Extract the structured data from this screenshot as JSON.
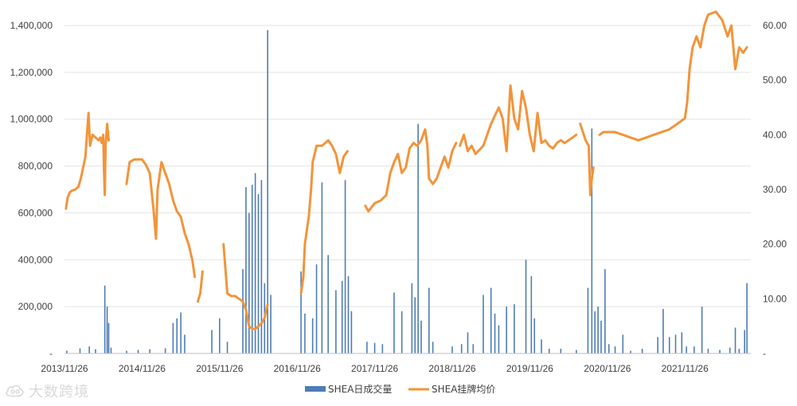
{
  "chart_data": {
    "type": "bar+line",
    "title": "",
    "x_tick_labels": [
      "2013/11/26",
      "2014/11/26",
      "2015/11/26",
      "2016/11/26",
      "2017/11/26",
      "2018/11/26",
      "2019/11/26",
      "2020/11/26",
      "2021/11/26"
    ],
    "y_left_ticks": [
      "-",
      "200,000",
      "400,000",
      "600,000",
      "800,000",
      "1,000,000",
      "1,200,000",
      "1,400,000"
    ],
    "y_right_ticks": [
      "-",
      "10.00",
      "20.00",
      "30.00",
      "40.00",
      "50.00",
      "60.00"
    ],
    "y_left_range": [
      0,
      1400000
    ],
    "y_right_range": [
      0,
      60
    ],
    "x_range": [
      2013.9,
      2022.75
    ],
    "series": [
      {
        "name": "SHEA日成交量",
        "type": "bar",
        "axis": "left",
        "color": "#4e7db5",
        "points": [
          [
            2013.93,
            12000
          ],
          [
            2014.1,
            22000
          ],
          [
            2014.22,
            30000
          ],
          [
            2014.3,
            18000
          ],
          [
            2014.42,
            290000
          ],
          [
            2014.45,
            200000
          ],
          [
            2014.47,
            130000
          ],
          [
            2014.5,
            25000
          ],
          [
            2014.7,
            12000
          ],
          [
            2014.85,
            15000
          ],
          [
            2015.0,
            18000
          ],
          [
            2015.2,
            22000
          ],
          [
            2015.3,
            130000
          ],
          [
            2015.35,
            150000
          ],
          [
            2015.4,
            175000
          ],
          [
            2015.45,
            80000
          ],
          [
            2015.8,
            100000
          ],
          [
            2015.9,
            150000
          ],
          [
            2016.0,
            50000
          ],
          [
            2016.2,
            360000
          ],
          [
            2016.24,
            710000
          ],
          [
            2016.28,
            600000
          ],
          [
            2016.32,
            720000
          ],
          [
            2016.36,
            770000
          ],
          [
            2016.4,
            680000
          ],
          [
            2016.44,
            740000
          ],
          [
            2016.48,
            300000
          ],
          [
            2016.52,
            1380000
          ],
          [
            2016.56,
            250000
          ],
          [
            2016.95,
            350000
          ],
          [
            2017.0,
            170000
          ],
          [
            2017.1,
            150000
          ],
          [
            2017.15,
            380000
          ],
          [
            2017.22,
            730000
          ],
          [
            2017.3,
            420000
          ],
          [
            2017.4,
            270000
          ],
          [
            2017.48,
            310000
          ],
          [
            2017.52,
            740000
          ],
          [
            2017.56,
            330000
          ],
          [
            2017.6,
            180000
          ],
          [
            2017.8,
            50000
          ],
          [
            2017.9,
            45000
          ],
          [
            2018.0,
            40000
          ],
          [
            2018.15,
            260000
          ],
          [
            2018.25,
            180000
          ],
          [
            2018.38,
            300000
          ],
          [
            2018.42,
            240000
          ],
          [
            2018.46,
            980000
          ],
          [
            2018.5,
            140000
          ],
          [
            2018.6,
            280000
          ],
          [
            2018.65,
            50000
          ],
          [
            2018.9,
            30000
          ],
          [
            2019.02,
            40000
          ],
          [
            2019.1,
            90000
          ],
          [
            2019.17,
            40000
          ],
          [
            2019.3,
            250000
          ],
          [
            2019.4,
            280000
          ],
          [
            2019.45,
            170000
          ],
          [
            2019.5,
            120000
          ],
          [
            2019.6,
            200000
          ],
          [
            2019.7,
            210000
          ],
          [
            2019.85,
            400000
          ],
          [
            2019.92,
            330000
          ],
          [
            2019.96,
            150000
          ],
          [
            2020.05,
            60000
          ],
          [
            2020.15,
            20000
          ],
          [
            2020.3,
            20000
          ],
          [
            2020.5,
            15000
          ],
          [
            2020.65,
            280000
          ],
          [
            2020.7,
            960000
          ],
          [
            2020.74,
            180000
          ],
          [
            2020.78,
            200000
          ],
          [
            2020.82,
            140000
          ],
          [
            2020.87,
            360000
          ],
          [
            2020.92,
            40000
          ],
          [
            2021.0,
            30000
          ],
          [
            2021.1,
            80000
          ],
          [
            2021.2,
            12000
          ],
          [
            2021.35,
            20000
          ],
          [
            2021.55,
            70000
          ],
          [
            2021.62,
            190000
          ],
          [
            2021.7,
            70000
          ],
          [
            2021.78,
            80000
          ],
          [
            2021.86,
            90000
          ],
          [
            2021.92,
            30000
          ],
          [
            2022.02,
            30000
          ],
          [
            2022.12,
            200000
          ],
          [
            2022.2,
            20000
          ],
          [
            2022.35,
            15000
          ],
          [
            2022.48,
            25000
          ],
          [
            2022.55,
            110000
          ],
          [
            2022.6,
            20000
          ],
          [
            2022.67,
            100000
          ],
          [
            2022.7,
            300000
          ]
        ]
      },
      {
        "name": "SHEA挂牌均价",
        "type": "line",
        "axis": "right",
        "color": "#f2943a",
        "segments": [
          [
            [
              2013.92,
              26.5
            ],
            [
              2013.94,
              28.5
            ],
            [
              2013.97,
              29.5
            ],
            [
              2014.0,
              29.8
            ],
            [
              2014.04,
              30.0
            ],
            [
              2014.08,
              30.5
            ],
            [
              2014.11,
              32.0
            ],
            [
              2014.14,
              34.0
            ],
            [
              2014.17,
              36.0
            ],
            [
              2014.19,
              40.0
            ],
            [
              2014.21,
              44.0
            ],
            [
              2014.23,
              38.0
            ],
            [
              2014.26,
              40.0
            ],
            [
              2014.3,
              39.5
            ],
            [
              2014.34,
              39.0
            ],
            [
              2014.36,
              39.5
            ],
            [
              2014.38,
              38.5
            ],
            [
              2014.4,
              40.0
            ],
            [
              2014.41,
              33.0
            ],
            [
              2014.42,
              29.0
            ],
            [
              2014.43,
              38.0
            ],
            [
              2014.45,
              42.0
            ],
            [
              2014.47,
              39.0
            ]
          ],
          [
            [
              2014.7,
              31.0
            ],
            [
              2014.74,
              35.0
            ],
            [
              2014.8,
              35.5
            ],
            [
              2014.9,
              35.5
            ],
            [
              2014.95,
              34.5
            ],
            [
              2015.0,
              33.0
            ],
            [
              2015.05,
              26.0
            ],
            [
              2015.08,
              21.0
            ],
            [
              2015.1,
              30.0
            ],
            [
              2015.15,
              35.0
            ],
            [
              2015.2,
              33.0
            ],
            [
              2015.25,
              31.0
            ],
            [
              2015.3,
              28.0
            ],
            [
              2015.35,
              26.0
            ],
            [
              2015.4,
              25.0
            ],
            [
              2015.45,
              22.0
            ],
            [
              2015.5,
              20.0
            ],
            [
              2015.55,
              17.0
            ],
            [
              2015.58,
              14.0
            ]
          ],
          [
            [
              2015.62,
              9.5
            ],
            [
              2015.65,
              11.0
            ],
            [
              2015.68,
              15.0
            ]
          ],
          [
            [
              2015.95,
              20.0
            ],
            [
              2016.0,
              11.0
            ],
            [
              2016.05,
              10.5
            ],
            [
              2016.1,
              10.5
            ],
            [
              2016.15,
              10.0
            ],
            [
              2016.2,
              9.5
            ],
            [
              2016.24,
              8.0
            ],
            [
              2016.28,
              5.0
            ],
            [
              2016.32,
              4.5
            ],
            [
              2016.36,
              4.5
            ],
            [
              2016.4,
              5.0
            ],
            [
              2016.44,
              5.5
            ],
            [
              2016.48,
              6.5
            ],
            [
              2016.52,
              9.0
            ]
          ],
          [
            [
              2016.95,
              11.0
            ],
            [
              2016.98,
              14.0
            ],
            [
              2017.0,
              20.0
            ],
            [
              2017.02,
              22.0
            ],
            [
              2017.05,
              25.0
            ],
            [
              2017.08,
              30.0
            ],
            [
              2017.1,
              35.0
            ],
            [
              2017.15,
              38.0
            ],
            [
              2017.22,
              38.0
            ],
            [
              2017.3,
              39.0
            ],
            [
              2017.35,
              38.0
            ],
            [
              2017.4,
              36.5
            ],
            [
              2017.45,
              33.0
            ],
            [
              2017.5,
              36.0
            ],
            [
              2017.55,
              37.0
            ]
          ],
          [
            [
              2017.78,
              27.0
            ],
            [
              2017.82,
              26.0
            ],
            [
              2017.9,
              27.5
            ],
            [
              2017.98,
              28.0
            ],
            [
              2018.05,
              29.0
            ],
            [
              2018.1,
              33.0
            ],
            [
              2018.15,
              35.0
            ],
            [
              2018.2,
              36.5
            ],
            [
              2018.25,
              33.0
            ],
            [
              2018.3,
              34.0
            ],
            [
              2018.35,
              37.5
            ],
            [
              2018.4,
              38.5
            ],
            [
              2018.45,
              38.0
            ],
            [
              2018.5,
              39.0
            ],
            [
              2018.55,
              41.0
            ],
            [
              2018.58,
              38.0
            ],
            [
              2018.6,
              32.0
            ],
            [
              2018.65,
              31.0
            ],
            [
              2018.7,
              32.0
            ],
            [
              2018.75,
              34.0
            ],
            [
              2018.8,
              36.0
            ],
            [
              2018.85,
              34.0
            ],
            [
              2018.9,
              37.0
            ],
            [
              2018.95,
              38.5
            ]
          ],
          [
            [
              2019.0,
              38.0
            ],
            [
              2019.05,
              40.0
            ],
            [
              2019.1,
              37.0
            ],
            [
              2019.15,
              38.0
            ],
            [
              2019.2,
              36.5
            ],
            [
              2019.3,
              38.0
            ],
            [
              2019.4,
              42.0
            ],
            [
              2019.5,
              45.0
            ],
            [
              2019.55,
              43.0
            ],
            [
              2019.6,
              37.0
            ],
            [
              2019.65,
              49.0
            ],
            [
              2019.7,
              43.0
            ],
            [
              2019.75,
              41.0
            ],
            [
              2019.8,
              48.0
            ],
            [
              2019.85,
              45.0
            ],
            [
              2019.9,
              40.0
            ],
            [
              2019.95,
              37.0
            ],
            [
              2020.0,
              44.0
            ],
            [
              2020.05,
              38.5
            ],
            [
              2020.1,
              39.0
            ],
            [
              2020.15,
              38.0
            ],
            [
              2020.2,
              37.5
            ],
            [
              2020.25,
              38.5
            ],
            [
              2020.3,
              39.0
            ],
            [
              2020.35,
              38.5
            ],
            [
              2020.4,
              39.0
            ],
            [
              2020.45,
              39.5
            ],
            [
              2020.5,
              40.0
            ]
          ],
          [
            [
              2020.55,
              42.0
            ],
            [
              2020.62,
              39.0
            ],
            [
              2020.66,
              38.0
            ],
            [
              2020.68,
              29.0
            ],
            [
              2020.7,
              32.0
            ],
            [
              2020.72,
              34.0
            ]
          ],
          [
            [
              2020.8,
              40.0
            ],
            [
              2020.85,
              40.5
            ],
            [
              2020.9,
              40.5
            ],
            [
              2021.0,
              40.5
            ],
            [
              2021.1,
              40.0
            ],
            [
              2021.2,
              39.5
            ],
            [
              2021.3,
              39.0
            ],
            [
              2021.4,
              39.5
            ],
            [
              2021.5,
              40.0
            ],
            [
              2021.6,
              40.5
            ],
            [
              2021.7,
              41.0
            ],
            [
              2021.8,
              42.0
            ],
            [
              2021.9,
              43.0
            ],
            [
              2021.93,
              46.0
            ],
            [
              2021.96,
              52.0
            ],
            [
              2022.0,
              56.0
            ],
            [
              2022.05,
              58.0
            ],
            [
              2022.1,
              56.0
            ],
            [
              2022.15,
              60.0
            ],
            [
              2022.2,
              62.0
            ],
            [
              2022.3,
              62.5
            ],
            [
              2022.38,
              61.0
            ],
            [
              2022.45,
              58.0
            ],
            [
              2022.5,
              60.0
            ],
            [
              2022.55,
              52.0
            ],
            [
              2022.6,
              56.0
            ],
            [
              2022.65,
              55.0
            ],
            [
              2022.7,
              56.0
            ]
          ]
        ]
      }
    ],
    "legend": [
      {
        "label": "SHEA日成交量",
        "marker": "bar",
        "color": "#4e7db5"
      },
      {
        "label": "SHEA挂牌均价",
        "marker": "line",
        "color": "#f2943a"
      }
    ],
    "legend_position": "bottom",
    "grid": true
  },
  "watermark": {
    "text": "大数跨境",
    "logo_icon": "cloud-logo-icon"
  }
}
